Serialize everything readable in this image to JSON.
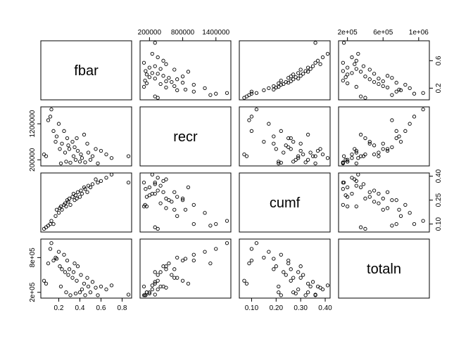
{
  "chart_data": {
    "type": "scatter_matrix",
    "variables": [
      {
        "name": "fbar",
        "lim": [
          0.03,
          0.89
        ],
        "xticks": [
          0.2,
          0.4,
          0.6,
          0.8
        ],
        "yticks": [
          0.2,
          0.6
        ],
        "values": [
          0.06,
          0.08,
          0.1,
          0.12,
          0.13,
          0.15,
          0.17,
          0.18,
          0.2,
          0.21,
          0.22,
          0.23,
          0.25,
          0.26,
          0.27,
          0.28,
          0.29,
          0.3,
          0.31,
          0.33,
          0.34,
          0.35,
          0.36,
          0.37,
          0.38,
          0.4,
          0.41,
          0.42,
          0.44,
          0.45,
          0.47,
          0.48,
          0.5,
          0.52,
          0.55,
          0.57,
          0.6,
          0.65,
          0.7,
          0.86
        ]
      },
      {
        "name": "recr",
        "lim": [
          30000,
          1670000
        ],
        "xticks": [
          200000,
          800000,
          1400000
        ],
        "yticks": [
          200000,
          1200000
        ],
        "values": [
          350000,
          300000,
          1300000,
          1400000,
          1600000,
          1000000,
          700000,
          850000,
          1200000,
          500000,
          100000,
          650000,
          1000000,
          400000,
          150000,
          800000,
          600000,
          500000,
          120000,
          700000,
          300000,
          550000,
          200000,
          800000,
          450000,
          150000,
          350000,
          250000,
          900000,
          130000,
          650000,
          400000,
          200000,
          300000,
          500000,
          100000,
          450000,
          350000,
          250000,
          300000
        ]
      },
      {
        "name": "cumf",
        "lim": [
          0.05,
          0.42
        ],
        "xticks": [
          {
            "value": 0.1,
            "label": "0.10"
          },
          {
            "value": 0.2,
            "label": "0.20"
          },
          {
            "value": 0.3,
            "label": "0.30"
          },
          {
            "value": 0.4,
            "label": "0.40"
          }
        ],
        "yticks": [
          {
            "value": 0.1,
            "label": "0.10"
          },
          {
            "value": 0.25,
            "label": "0.25"
          },
          {
            "value": 0.4,
            "label": "0.40"
          }
        ],
        "values": [
          0.07,
          0.08,
          0.09,
          0.1,
          0.12,
          0.1,
          0.15,
          0.19,
          0.17,
          0.2,
          0.21,
          0.19,
          0.22,
          0.23,
          0.21,
          0.25,
          0.24,
          0.26,
          0.22,
          0.27,
          0.29,
          0.25,
          0.28,
          0.26,
          0.3,
          0.27,
          0.31,
          0.29,
          0.33,
          0.32,
          0.3,
          0.34,
          0.33,
          0.35,
          0.38,
          0.36,
          0.37,
          0.39,
          0.41,
          0.36
        ]
      },
      {
        "name": "totaln",
        "lim": [
          100000,
          1120000
        ],
        "xticks": [
          {
            "value": 200000,
            "label": "2e+05"
          },
          {
            "value": 600000,
            "label": "6e+05"
          },
          {
            "value": 1000000,
            "label": "1e+06"
          }
        ],
        "yticks": [
          {
            "value": 200000,
            "label": "2e+05"
          },
          {
            "value": 800000,
            "label": "8e+05"
          }
        ],
        "values": [
          400000,
          350000,
          700000,
          950000,
          1050000,
          750000,
          800000,
          780000,
          900000,
          650000,
          300000,
          600000,
          850000,
          550000,
          200000,
          750000,
          500000,
          600000,
          150000,
          450000,
          550000,
          700000,
          180000,
          400000,
          650000,
          200000,
          500000,
          250000,
          350000,
          150000,
          450000,
          300000,
          200000,
          380000,
          280000,
          150000,
          300000,
          250000,
          320000,
          160000
        ]
      }
    ]
  }
}
